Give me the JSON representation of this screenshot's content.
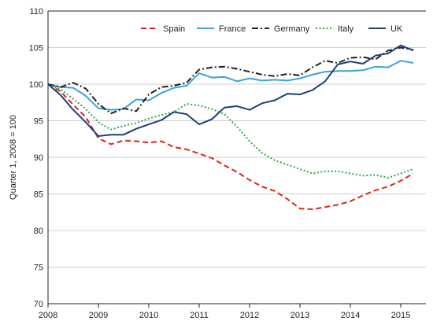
{
  "chart_data": {
    "type": "line",
    "title": "",
    "xlabel": "",
    "ylabel": "Quarter 1, 2008 = 100",
    "ylim": [
      70,
      110
    ],
    "yticks": [
      70,
      75,
      80,
      85,
      90,
      95,
      100,
      105,
      110
    ],
    "xlim": [
      2008,
      2015.5
    ],
    "xticks": [
      2008,
      2009,
      2010,
      2011,
      2012,
      2013,
      2014,
      2015
    ],
    "xtick_labels": [
      "2008",
      "2009",
      "2010",
      "2011",
      "2012",
      "2013",
      "2014",
      "2015"
    ],
    "grid": "horizontal",
    "legend_position": "top",
    "x": [
      2008.0,
      2008.25,
      2008.5,
      2008.75,
      2009.0,
      2009.25,
      2009.5,
      2009.75,
      2010.0,
      2010.25,
      2010.5,
      2010.75,
      2011.0,
      2011.25,
      2011.5,
      2011.75,
      2012.0,
      2012.25,
      2012.5,
      2012.75,
      2013.0,
      2013.25,
      2013.5,
      2013.75,
      2014.0,
      2014.25,
      2014.5,
      2014.75,
      2015.0,
      2015.25
    ],
    "series": [
      {
        "name": "Spain",
        "color": "#e2231a",
        "dash": "dashed",
        "values": [
          100.0,
          99.0,
          97.2,
          95.5,
          92.6,
          91.8,
          92.3,
          92.2,
          92.0,
          92.2,
          91.4,
          91.1,
          90.5,
          89.9,
          88.9,
          88.0,
          86.9,
          86.0,
          85.4,
          84.3,
          83.0,
          82.9,
          83.2,
          83.5,
          84.0,
          84.8,
          85.5,
          86.0,
          86.8,
          87.8
        ]
      },
      {
        "name": "France",
        "color": "#3aa3dc",
        "dash": "solid",
        "values": [
          100.0,
          99.6,
          99.5,
          98.4,
          96.7,
          96.5,
          96.6,
          97.9,
          97.8,
          98.8,
          99.5,
          99.8,
          101.5,
          100.9,
          101.0,
          100.4,
          100.8,
          100.5,
          100.6,
          100.5,
          100.8,
          101.3,
          101.7,
          101.8,
          101.8,
          101.9,
          102.4,
          102.3,
          103.2,
          102.9
        ]
      },
      {
        "name": "Germany",
        "color": "#231f20",
        "dash": "dashdot",
        "values": [
          100.0,
          99.6,
          100.2,
          99.4,
          97.3,
          96.0,
          96.7,
          96.3,
          98.6,
          99.6,
          99.8,
          100.2,
          102.0,
          102.3,
          102.4,
          102.1,
          101.7,
          101.3,
          101.1,
          101.4,
          101.2,
          102.3,
          103.2,
          102.9,
          103.6,
          103.7,
          103.4,
          104.6,
          105.0,
          104.7
        ]
      },
      {
        "name": "Italy",
        "color": "#2ea84a",
        "dash": "dotted",
        "values": [
          100.0,
          99.3,
          98.0,
          96.6,
          94.8,
          93.8,
          94.3,
          94.7,
          95.3,
          95.8,
          96.2,
          97.3,
          97.1,
          96.6,
          95.9,
          94.2,
          92.2,
          90.6,
          89.6,
          89.0,
          88.4,
          87.8,
          88.1,
          88.1,
          87.8,
          87.5,
          87.6,
          87.2,
          87.8,
          88.4
        ]
      },
      {
        "name": "UK",
        "color": "#1b3f73",
        "dash": "solid",
        "values": [
          100.0,
          98.5,
          96.5,
          94.8,
          92.9,
          93.1,
          93.1,
          93.9,
          94.5,
          95.1,
          96.2,
          95.9,
          94.5,
          95.2,
          96.8,
          97.0,
          96.5,
          97.4,
          97.8,
          98.7,
          98.6,
          99.2,
          100.4,
          102.7,
          103.1,
          102.8,
          103.9,
          104.2,
          105.3,
          104.6
        ]
      }
    ]
  }
}
